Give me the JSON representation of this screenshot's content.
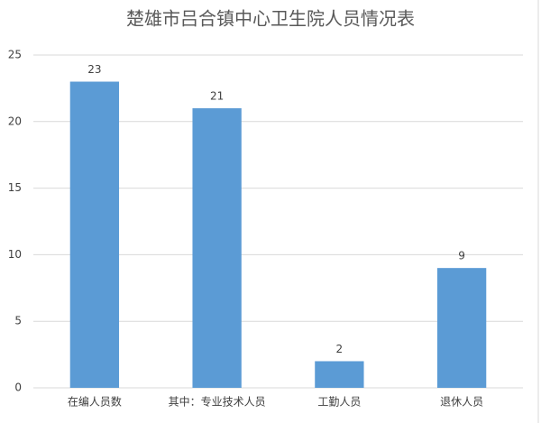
{
  "chart_data": {
    "type": "bar",
    "title": "楚雄市吕合镇中心卫生院人员情况表",
    "categories": [
      "在编人员数",
      "其中：专业技术人员",
      "工勤人员",
      "退休人员"
    ],
    "values": [
      23,
      21,
      2,
      9
    ],
    "color": "#5b9bd5",
    "ylim": [
      0,
      25
    ],
    "yticks": [
      0,
      5,
      10,
      15,
      20,
      25
    ],
    "grid": true
  }
}
